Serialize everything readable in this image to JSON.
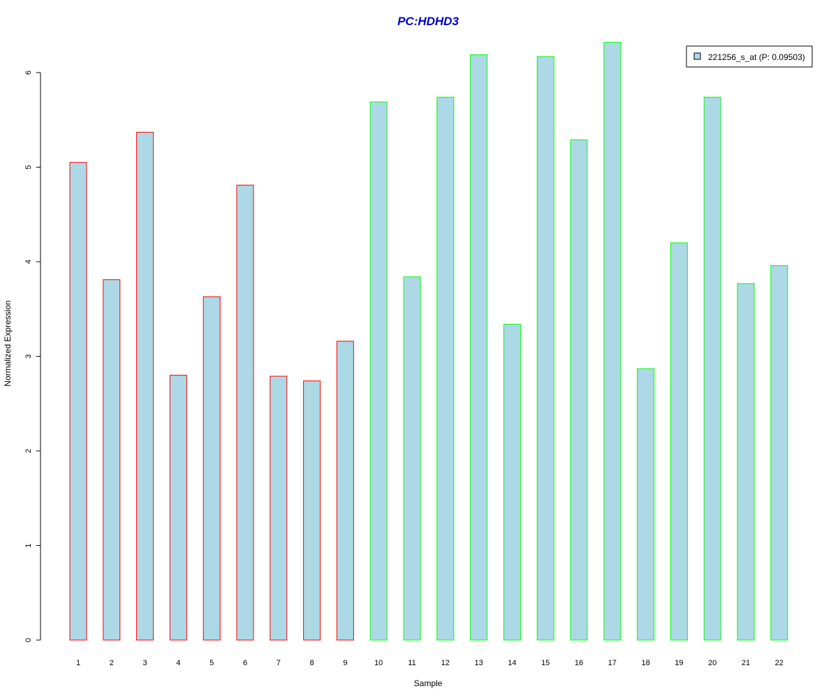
{
  "chart_data": {
    "type": "bar",
    "title": "PC:HDHD3",
    "xlabel": "Sample",
    "ylabel": "Normalized Expression",
    "categories": [
      "1",
      "2",
      "3",
      "4",
      "5",
      "6",
      "7",
      "8",
      "9",
      "10",
      "11",
      "12",
      "13",
      "14",
      "15",
      "16",
      "17",
      "18",
      "19",
      "20",
      "21",
      "22"
    ],
    "values": [
      5.05,
      3.81,
      5.37,
      2.8,
      3.63,
      4.81,
      2.79,
      2.74,
      3.16,
      5.69,
      3.84,
      5.74,
      6.19,
      3.34,
      6.17,
      5.29,
      6.32,
      2.87,
      4.2,
      5.74,
      3.77,
      3.96
    ],
    "groups": [
      "a",
      "a",
      "a",
      "a",
      "a",
      "a",
      "a",
      "a",
      "a",
      "b",
      "b",
      "b",
      "b",
      "b",
      "b",
      "b",
      "b",
      "b",
      "b",
      "b",
      "b",
      "b"
    ],
    "ylim": [
      0,
      6
    ],
    "yticks": [
      "0",
      "1",
      "2",
      "3",
      "4",
      "5",
      "6"
    ],
    "grid": false,
    "legend": {
      "position": "top-right",
      "entries": [
        {
          "label": "221256_s_at (P: 0.09503)",
          "color": "#add8e6"
        }
      ]
    },
    "colors": {
      "fill": "#add8e6",
      "border_a": "#ff0000",
      "border_b": "#00ff00",
      "title": "#0000cd",
      "axis": "#000000"
    }
  }
}
